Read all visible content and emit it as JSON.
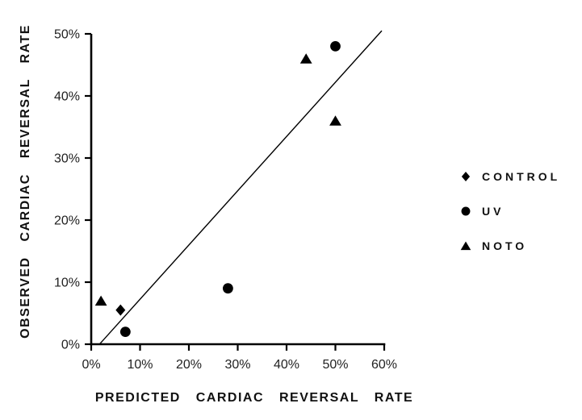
{
  "chart_data": {
    "type": "scatter",
    "title": "",
    "xlabel": "PREDICTED CARDIAC REVERSAL RATE",
    "ylabel": "OBSERVED CARDIAC REVERSAL RATE",
    "xlim": [
      0,
      60
    ],
    "ylim": [
      0,
      50
    ],
    "x_ticks": [
      0,
      10,
      20,
      30,
      40,
      50,
      60
    ],
    "x_tick_labels": [
      "0%",
      "10%",
      "20%",
      "30%",
      "40%",
      "50%",
      "60%"
    ],
    "y_ticks": [
      0,
      10,
      20,
      30,
      40,
      50
    ],
    "y_tick_labels": [
      "0%",
      "10%",
      "20%",
      "30%",
      "40%",
      "50%"
    ],
    "grid": false,
    "legend_position": "right",
    "ink_color": "#000000",
    "series": [
      {
        "name": "CONTROL",
        "marker": "diamond",
        "points": [
          [
            6,
            5.5
          ]
        ]
      },
      {
        "name": "UV",
        "marker": "circle",
        "points": [
          [
            7,
            2
          ],
          [
            28,
            9
          ],
          [
            50,
            48
          ]
        ]
      },
      {
        "name": "NOTO",
        "marker": "triangle",
        "points": [
          [
            2,
            7
          ],
          [
            44,
            46
          ],
          [
            50,
            36
          ]
        ]
      }
    ],
    "fit_line": {
      "x_start": 1.7,
      "y_start": 0,
      "x_end": 59.5,
      "y_end": 50.5
    }
  }
}
